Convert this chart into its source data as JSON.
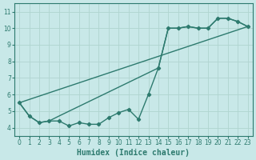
{
  "xlabel": "Humidex (Indice chaleur)",
  "bg_color": "#c8e8e8",
  "line_color": "#2d7a6e",
  "grid_color": "#b0d4d0",
  "spine_color": "#2d7a6e",
  "xlim": [
    -0.5,
    23.5
  ],
  "ylim": [
    3.5,
    11.5
  ],
  "xticks": [
    0,
    1,
    2,
    3,
    4,
    5,
    6,
    7,
    8,
    9,
    10,
    11,
    12,
    13,
    14,
    15,
    16,
    17,
    18,
    19,
    20,
    21,
    22,
    23
  ],
  "yticks": [
    4,
    5,
    6,
    7,
    8,
    9,
    10,
    11
  ],
  "line1_x": [
    0,
    1,
    2,
    3,
    4,
    5,
    6,
    7,
    8,
    9,
    10,
    11,
    12,
    13,
    14,
    15,
    16,
    17,
    18,
    19,
    20,
    21,
    22,
    23
  ],
  "line1_y": [
    5.5,
    4.7,
    4.3,
    4.4,
    4.4,
    4.1,
    4.3,
    4.2,
    4.2,
    4.6,
    4.9,
    5.1,
    4.5,
    6.0,
    7.6,
    10.0,
    10.0,
    10.1,
    10.0,
    10.0,
    10.6,
    10.6,
    10.4,
    10.1
  ],
  "line2_x": [
    0,
    1,
    2,
    3,
    4,
    14,
    15,
    16,
    17,
    18,
    19,
    20,
    21,
    22,
    23
  ],
  "line2_y": [
    5.5,
    4.7,
    4.3,
    4.4,
    4.7,
    7.6,
    10.0,
    10.0,
    10.1,
    10.0,
    10.0,
    10.6,
    10.6,
    10.4,
    10.1
  ],
  "line3_x": [
    0,
    23
  ],
  "line3_y": [
    5.5,
    10.1
  ],
  "marker": "D",
  "markersize": 2.2,
  "linewidth": 1.0,
  "xlabel_fontsize": 7.0,
  "tick_labelsize": 5.5
}
